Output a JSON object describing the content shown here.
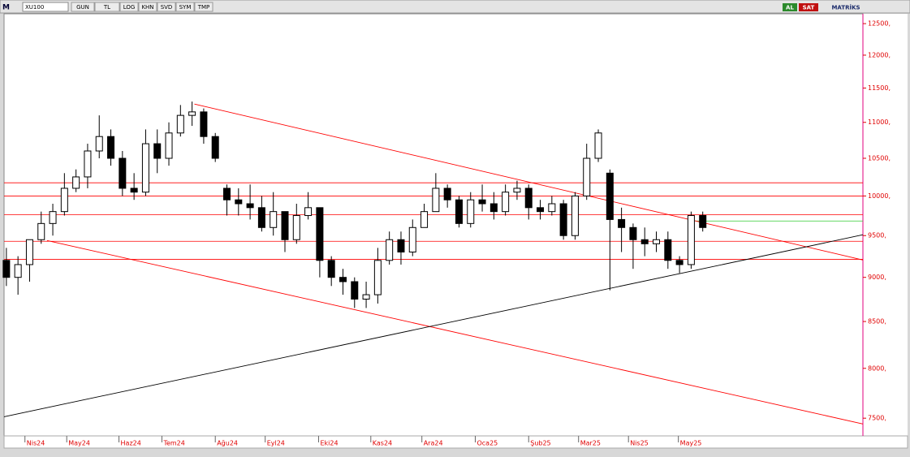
{
  "toolbar": {
    "logo": "M",
    "symbol": "XU100",
    "buttons": [
      "GUN",
      "TL",
      "LOG",
      "KHN",
      "SVD",
      "SYM",
      "TMP"
    ],
    "buy": "AL",
    "sell": "SAT",
    "brand": "MATRİKS"
  },
  "chart_data": {
    "type": "candlestick",
    "log_scale": true,
    "color": "#000000",
    "axis_color": "#e00000",
    "ylim": [
      7330,
      12660
    ],
    "yticks": [
      {
        "value": 7500,
        "label": "7500,"
      },
      {
        "value": 8000,
        "label": "8000,"
      },
      {
        "value": 8500,
        "label": "8500,"
      },
      {
        "value": 9000,
        "label": "9000,"
      },
      {
        "value": 9500,
        "label": "9500,"
      },
      {
        "value": 10000,
        "label": "10000,"
      },
      {
        "value": 10500,
        "label": "10500,"
      },
      {
        "value": 11000,
        "label": "11000,"
      },
      {
        "value": 11500,
        "label": "11500,"
      },
      {
        "value": 12000,
        "label": "12000,"
      },
      {
        "value": 12500,
        "label": "12500,"
      }
    ],
    "xlim": [
      -0.2,
      73.8
    ],
    "xticks": [
      {
        "value": 1.6,
        "label": "Nis24"
      },
      {
        "value": 5.2,
        "label": "May24"
      },
      {
        "value": 9.7,
        "label": "Haz24"
      },
      {
        "value": 13.4,
        "label": "Tem24"
      },
      {
        "value": 18.0,
        "label": "Ağu24"
      },
      {
        "value": 22.3,
        "label": "Eyl24"
      },
      {
        "value": 26.9,
        "label": "Eki24"
      },
      {
        "value": 31.4,
        "label": "Kas24"
      },
      {
        "value": 35.8,
        "label": "Ara24"
      },
      {
        "value": 40.4,
        "label": "Oca25"
      },
      {
        "value": 45.0,
        "label": "Şub25"
      },
      {
        "value": 49.3,
        "label": "Mar25"
      },
      {
        "value": 53.6,
        "label": "Nis25"
      },
      {
        "value": 57.9,
        "label": "May25"
      }
    ],
    "x": [
      0,
      1,
      2,
      3,
      4,
      5,
      6,
      7,
      8,
      9,
      10,
      11,
      12,
      13,
      14,
      15,
      16,
      17,
      18,
      19,
      20,
      21,
      22,
      23,
      24,
      25,
      26,
      27,
      28,
      29,
      30,
      31,
      32,
      33,
      34,
      35,
      36,
      37,
      38,
      39,
      40,
      41,
      42,
      43,
      44,
      45,
      46,
      47,
      48,
      49,
      50,
      51,
      52,
      53,
      54,
      55,
      56,
      57,
      58,
      59,
      60
    ],
    "open": [
      9200,
      9000,
      9150,
      9450,
      9650,
      9800,
      10100,
      10250,
      10600,
      10800,
      10500,
      10100,
      10050,
      10700,
      10500,
      10850,
      11100,
      11150,
      10800,
      10100,
      9950,
      9900,
      9850,
      9600,
      9800,
      9450,
      9750,
      9850,
      9200,
      9000,
      8950,
      8750,
      8800,
      9200,
      9450,
      9300,
      9600,
      9800,
      10100,
      9950,
      9650,
      9950,
      9900,
      9800,
      10050,
      10100,
      9850,
      9800,
      9900,
      9500,
      10000,
      10500,
      10300,
      9700,
      9600,
      9450,
      9400,
      9450,
      9200,
      9150,
      9750
    ],
    "high": [
      9350,
      9250,
      9450,
      9800,
      9900,
      10300,
      10350,
      10700,
      11100,
      10900,
      10600,
      10300,
      10900,
      10900,
      11000,
      11250,
      11300,
      11200,
      10850,
      10150,
      10100,
      10150,
      10000,
      10050,
      9800,
      9900,
      10050,
      9850,
      9250,
      9100,
      9000,
      8950,
      9350,
      9550,
      9550,
      9700,
      9900,
      10300,
      10150,
      10000,
      10050,
      10150,
      10050,
      10150,
      10200,
      10150,
      9950,
      10000,
      9950,
      10050,
      10700,
      10900,
      10350,
      9850,
      9650,
      9600,
      9550,
      9550,
      9250,
      9800,
      9800
    ],
    "low": [
      8900,
      8800,
      8950,
      9400,
      9500,
      9750,
      10050,
      10100,
      10500,
      10400,
      10000,
      9950,
      10000,
      10300,
      10400,
      10800,
      10950,
      10700,
      10450,
      9750,
      9750,
      9700,
      9550,
      9500,
      9300,
      9400,
      9700,
      9000,
      8900,
      8800,
      8650,
      8650,
      8700,
      9150,
      9150,
      9250,
      9600,
      9800,
      9850,
      9600,
      9600,
      9800,
      9700,
      9750,
      9950,
      9700,
      9700,
      9750,
      9450,
      9450,
      9950,
      10450,
      8850,
      9300,
      9100,
      9250,
      9300,
      9100,
      9050,
      9100,
      9550
    ],
    "close": [
      9000,
      9150,
      9450,
      9650,
      9800,
      10100,
      10250,
      10600,
      10800,
      10500,
      10100,
      10050,
      10700,
      10500,
      10850,
      11100,
      11150,
      10800,
      10500,
      9950,
      9900,
      9850,
      9600,
      9800,
      9450,
      9750,
      9850,
      9200,
      9000,
      8950,
      8750,
      8800,
      9200,
      9450,
      9300,
      9600,
      9800,
      10100,
      9950,
      9650,
      9950,
      9900,
      9800,
      10050,
      10100,
      9850,
      9800,
      9900,
      9500,
      10000,
      10500,
      10850,
      9700,
      9600,
      9450,
      9400,
      9450,
      9200,
      9150,
      9750,
      9600
    ],
    "levels": [
      {
        "color": "#ff0000",
        "value": 10172
      },
      {
        "color": "#ff0000",
        "value": 10000
      },
      {
        "color": "#ff0000",
        "value": 9762
      },
      {
        "color": "#ff0000",
        "value": 9430
      },
      {
        "color": "#ff0000",
        "value": 9213
      }
    ],
    "green_level": {
      "color": "#33cc33",
      "value": 9681,
      "from": 59.2
    },
    "lines": [
      {
        "color": "#ff0000",
        "x": [
          16.2,
          73.8
        ],
        "values": [
          11264,
          9205
        ]
      },
      {
        "color": "#ff0000",
        "x": [
          3.5,
          73.8
        ],
        "values": [
          9440,
          7444
        ]
      },
      {
        "color": "#000000",
        "x": [
          -0.2,
          73.8
        ],
        "values": [
          7514,
          9510
        ]
      }
    ]
  }
}
